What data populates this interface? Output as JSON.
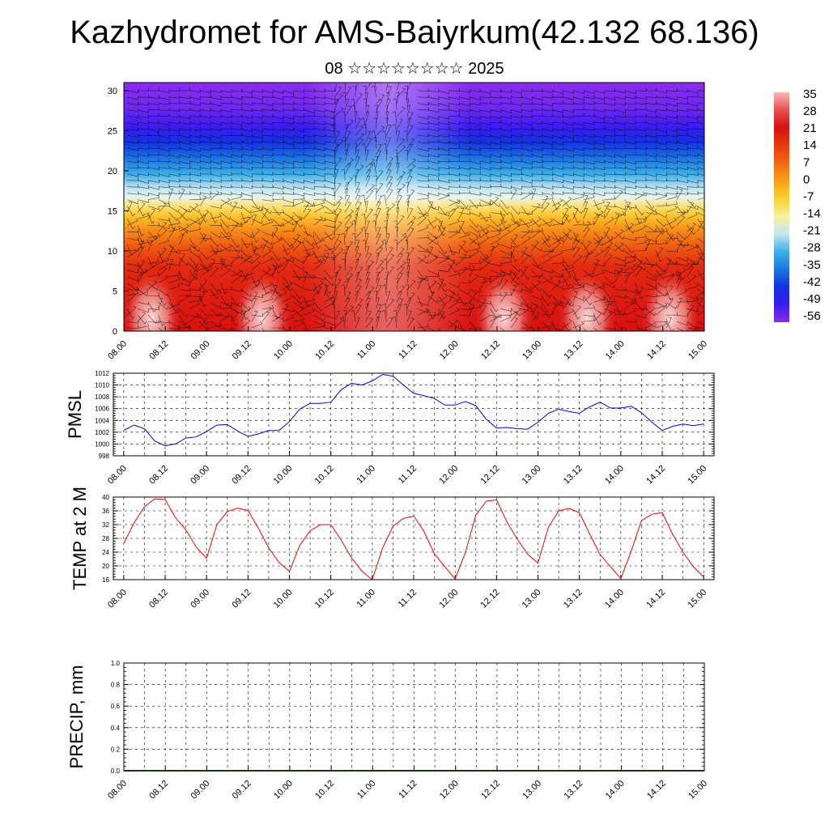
{
  "header": {
    "title": "Kazhydromet for AMS-Baiyrkum(42.132 68.136)",
    "subtitle": "08 ☆☆☆☆☆☆☆☆ 2025"
  },
  "chart_data": [
    {
      "type": "heatmap",
      "description_kind": "height-time cross-section of temperature with wind barbs",
      "x_tick_labels": [
        "08.00",
        "08.12",
        "09.00",
        "09.12",
        "10.00",
        "10.12",
        "11.00",
        "11.12",
        "12.00",
        "12.12",
        "13.00",
        "13.12",
        "14.00",
        "14.12",
        "15.00"
      ],
      "y_ticks": [
        0,
        5,
        10,
        15,
        20,
        25,
        30
      ],
      "ylim": [
        0,
        31
      ],
      "xlim": [
        0,
        168
      ],
      "colorbar": {
        "labels": [
          "35",
          "28",
          "21",
          "14",
          "7",
          "0",
          "-7",
          "-14",
          "-21",
          "-28",
          "-35",
          "-42",
          "-49",
          "-56"
        ],
        "colors_top_to_bottom": [
          "#f7b8b8",
          "#e85050",
          "#d81010",
          "#e63a10",
          "#f26a10",
          "#f8a018",
          "#fbd030",
          "#f8f2a0",
          "#c8e6f0",
          "#3fb0e8",
          "#1e78e0",
          "#1432e0",
          "#3a1cf0",
          "#8a2cf0"
        ]
      },
      "hot_spots_times": [
        8,
        40,
        110,
        134,
        158
      ],
      "grid": false
    },
    {
      "type": "line",
      "ylabel": "PMSL",
      "x_tick_labels": [
        "08.00",
        "08.12",
        "09.00",
        "09.12",
        "10.00",
        "10.12",
        "11.00",
        "11.12",
        "12.00",
        "12.12",
        "13.00",
        "13.12",
        "14.00",
        "14.12",
        "15.00"
      ],
      "xlim": [
        -3,
        171
      ],
      "ylim": [
        998,
        1012
      ],
      "y_ticks": [
        998,
        1000,
        1002,
        1004,
        1006,
        1008,
        1010,
        1012
      ],
      "grid": true,
      "series": [
        {
          "color": "#0000ff",
          "x": [
            0,
            3,
            6,
            9,
            12,
            15,
            18,
            21,
            24,
            27,
            30,
            33,
            36,
            39,
            42,
            45,
            48,
            51,
            54,
            57,
            60,
            63,
            66,
            69,
            72,
            75,
            78,
            81,
            84,
            87,
            90,
            93,
            96,
            99,
            102,
            105,
            108,
            111,
            114,
            117,
            120,
            123,
            126,
            129,
            132,
            135,
            138,
            141,
            144,
            147,
            150,
            153,
            156,
            159,
            162,
            165,
            168
          ],
          "values": [
            1002.3,
            1003.2,
            1002.6,
            1000.5,
            999.7,
            1000.0,
            1001.0,
            1001.2,
            1002.1,
            1003.2,
            1003.3,
            1002.2,
            1001.3,
            1001.7,
            1002.3,
            1002.3,
            1003.8,
            1005.9,
            1006.9,
            1006.9,
            1007.1,
            1009.2,
            1010.3,
            1010.0,
            1010.7,
            1011.8,
            1011.5,
            1010.0,
            1008.6,
            1008.2,
            1007.7,
            1006.6,
            1006.6,
            1007.2,
            1006.5,
            1004.2,
            1002.7,
            1002.8,
            1002.6,
            1002.5,
            1003.7,
            1005.2,
            1005.9,
            1005.5,
            1005.2,
            1006.3,
            1007.1,
            1006.1,
            1006.1,
            1006.4,
            1005.3,
            1003.7,
            1002.3,
            1003.0,
            1003.4,
            1003.1,
            1003.4
          ]
        }
      ]
    },
    {
      "type": "line",
      "ylabel": "TEMP at 2 M",
      "x_tick_labels": [
        "08.00",
        "08.12",
        "09.00",
        "09.12",
        "10.00",
        "10.12",
        "11.00",
        "11.12",
        "12.00",
        "12.12",
        "13.00",
        "13.12",
        "14.00",
        "14.12",
        "15.00"
      ],
      "xlim": [
        -3,
        171
      ],
      "ylim": [
        16,
        40
      ],
      "y_ticks": [
        16,
        20,
        24,
        28,
        32,
        36,
        40
      ],
      "grid": true,
      "series": [
        {
          "color": "#ff0000",
          "x": [
            0,
            3,
            6,
            9,
            12,
            15,
            18,
            21,
            24,
            27,
            30,
            33,
            36,
            39,
            42,
            45,
            48,
            51,
            54,
            57,
            60,
            63,
            66,
            69,
            72,
            75,
            78,
            81,
            84,
            87,
            90,
            93,
            96,
            99,
            102,
            105,
            108,
            111,
            114,
            117,
            120,
            123,
            126,
            129,
            132,
            135,
            138,
            141,
            144,
            147,
            150,
            153,
            156,
            159,
            162,
            165,
            168
          ],
          "values": [
            26.5,
            32.5,
            37.2,
            39.5,
            39.3,
            34.0,
            30.5,
            25.5,
            22.2,
            32.0,
            35.8,
            36.8,
            36.1,
            31.0,
            25.2,
            21.0,
            18.4,
            26.0,
            30.2,
            32.0,
            32.0,
            27.5,
            22.3,
            18.5,
            16.0,
            25.2,
            31.5,
            33.8,
            34.5,
            30.0,
            23.5,
            19.8,
            16.2,
            24.0,
            34.8,
            38.8,
            39.2,
            32.8,
            27.8,
            23.4,
            20.8,
            31.2,
            36.0,
            36.7,
            35.5,
            29.2,
            23.3,
            19.8,
            16.3,
            24.3,
            33.2,
            35.0,
            35.5,
            29.2,
            24.0,
            19.8,
            16.8
          ]
        }
      ]
    },
    {
      "type": "line",
      "ylabel": "PRECIP, mm",
      "x_tick_labels": [
        "08.00",
        "08.12",
        "09.00",
        "09.12",
        "10.00",
        "10.12",
        "11.00",
        "11.12",
        "12.00",
        "12.12",
        "13.00",
        "13.12",
        "14.00",
        "14.12",
        "15.00"
      ],
      "xlim": [
        0,
        168
      ],
      "ylim": [
        0,
        1.0
      ],
      "y_tick_labels": [
        "0.0",
        "0.2",
        "0.4",
        "0.6",
        "0.8",
        "1.0"
      ],
      "grid": true,
      "series": [
        {
          "color": "#2f6b2f",
          "x": [
            0,
            168
          ],
          "values": [
            0,
            0
          ]
        }
      ]
    }
  ]
}
